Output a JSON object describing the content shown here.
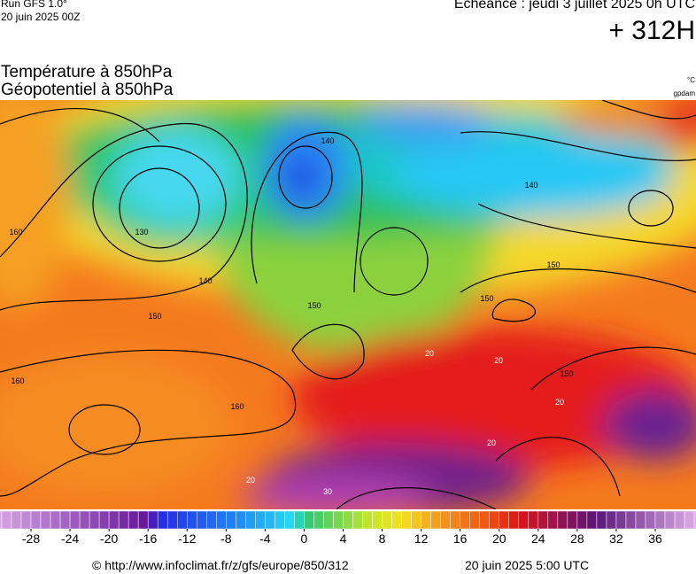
{
  "header": {
    "run": "Run GFS 1.0°",
    "date": "20 juin 2025 00Z",
    "valid": "Echéance : jeudi 3 juillet 2025 0h UTC",
    "lead": "+ 312H",
    "title1": "Température à 850hPa",
    "title2": "Géopotentiel à 850hPa",
    "unit1": "°C",
    "unit2": "gpdam"
  },
  "map": {
    "contour_labels": [
      "140",
      "130",
      "160",
      "140",
      "150",
      "150",
      "160",
      "160",
      "150",
      "150",
      "140",
      "150",
      "20",
      "20",
      "20",
      "20",
      "30",
      "20"
    ]
  },
  "colorbar": {
    "ticks": [
      -28,
      -24,
      -20,
      -16,
      -12,
      -8,
      -4,
      0,
      4,
      8,
      12,
      16,
      20,
      24,
      28,
      32,
      36
    ]
  },
  "footer": {
    "source": "© http://www.infoclimat.fr/z/gfs/europe/850/312",
    "issued": "20 juin 2025  5:00 UTC"
  }
}
